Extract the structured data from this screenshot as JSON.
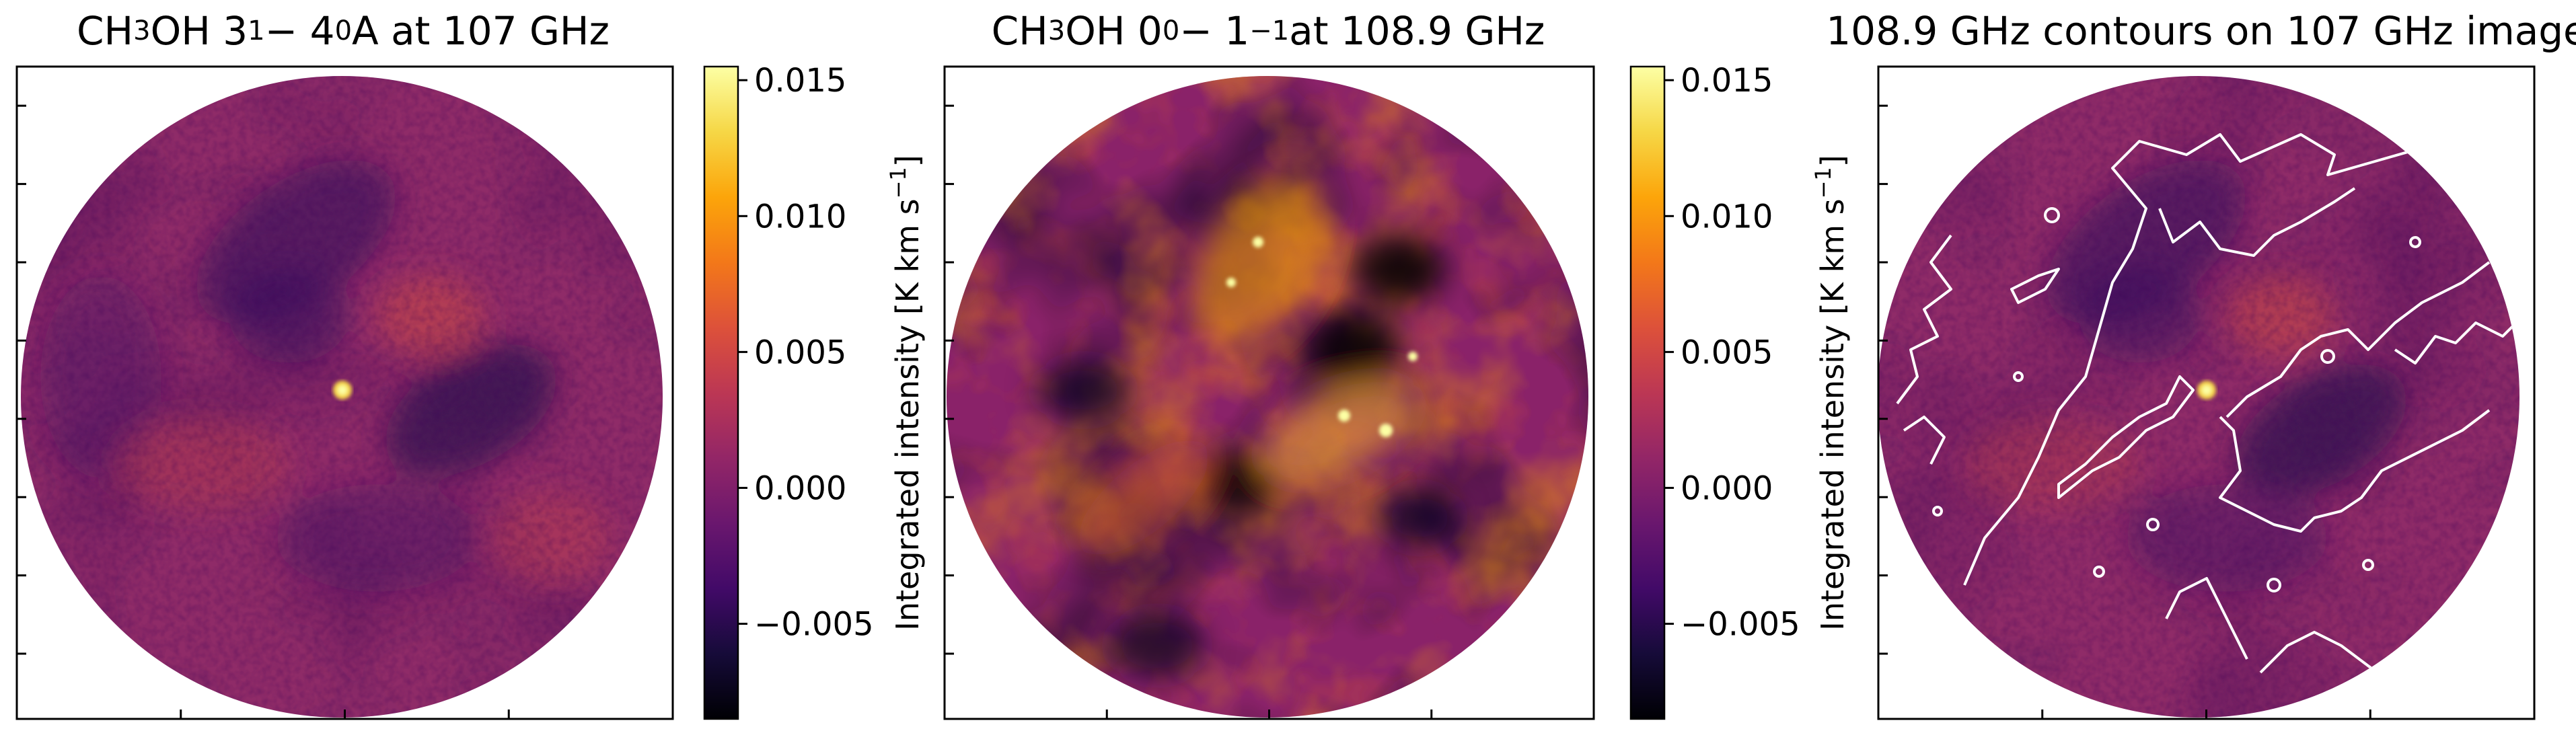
{
  "panels": [
    {
      "title_parts": [
        {
          "t": "CH",
          "s": null
        },
        {
          "t": "3",
          "s": "sub"
        },
        {
          "t": "OH 3",
          "s": null
        },
        {
          "t": "1",
          "s": "sub"
        },
        {
          "t": " − 4",
          "s": null
        },
        {
          "t": "0",
          "s": "sub"
        },
        {
          "t": " A at 107 GHz",
          "s": null
        }
      ]
    },
    {
      "title_parts": [
        {
          "t": "CH",
          "s": null
        },
        {
          "t": "3",
          "s": "sub"
        },
        {
          "t": "OH 0",
          "s": null
        },
        {
          "t": "0",
          "s": "sub"
        },
        {
          "t": " − 1",
          "s": null
        },
        {
          "t": "−1",
          "s": "sub"
        },
        {
          "t": " at 108.9 GHz",
          "s": null
        }
      ]
    },
    {
      "title_parts": [
        {
          "t": "108.9 GHz contours on 107 GHz image",
          "s": null
        }
      ]
    }
  ],
  "colorbar": {
    "label": "Integrated intensity [K km s",
    "label_sup": "−1",
    "label_end": "]",
    "tick_labels": [
      "0.015",
      "0.010",
      "0.005",
      "0.000",
      "−0.005"
    ],
    "tick_values": [
      0.015,
      0.01,
      0.005,
      0.0,
      -0.005
    ]
  },
  "chart_data": {
    "type": "heatmap",
    "colormap": "inferno",
    "colorbar_range": [
      -0.0085,
      0.0155
    ],
    "image_1_features": [
      {
        "desc": "compact bright peak",
        "value": 0.013
      }
    ],
    "image_1_background": "mostly -0.003 to 0.006 K km/s",
    "image_2_background": "strong structure: dark lanes near -0.008, bright ridges up to 0.014 K km/s",
    "contour_color": "#ffffff"
  }
}
